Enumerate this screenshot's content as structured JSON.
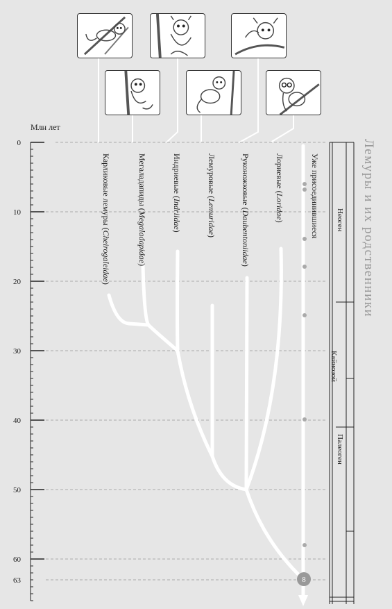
{
  "axis": {
    "unit_label": "Млн лет",
    "ticks": [
      0,
      10,
      20,
      30,
      40,
      50,
      60,
      63
    ]
  },
  "title": "Лемуры и их родственники",
  "families": [
    {
      "name": "Карликовые лемуры",
      "latin": "Cheirogaleidae"
    },
    {
      "name": "Мегаладапиды",
      "latin": "Megaladapidae"
    },
    {
      "name": "Индриевые",
      "latin": "Indriidae"
    },
    {
      "name": "Лемуровые",
      "latin": "Lemuridae"
    },
    {
      "name": "Руконожковые",
      "latin": "Daubentoniidae"
    },
    {
      "name": "Лориевые",
      "latin": "Loridae"
    }
  ],
  "joined": "Уже присоединившиеся",
  "rendezvous_number": "8",
  "eras": {
    "neogene": "Неоген",
    "cenozoic": "Кайнозой",
    "paleogene": "Палеоген"
  },
  "icons": [
    "lemur-illustration-icon",
    "lemur-illustration-icon",
    "lemur-illustration-icon",
    "lemur-illustration-icon",
    "lemur-illustration-icon",
    "lemur-illustration-icon"
  ]
}
